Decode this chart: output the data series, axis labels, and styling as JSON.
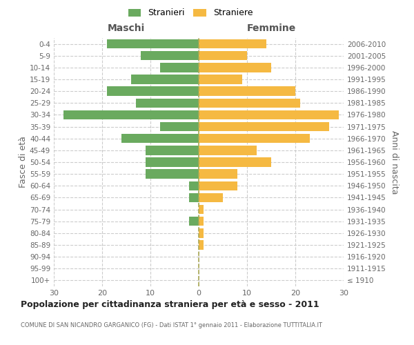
{
  "age_groups": [
    "100+",
    "95-99",
    "90-94",
    "85-89",
    "80-84",
    "75-79",
    "70-74",
    "65-69",
    "60-64",
    "55-59",
    "50-54",
    "45-49",
    "40-44",
    "35-39",
    "30-34",
    "25-29",
    "20-24",
    "15-19",
    "10-14",
    "5-9",
    "0-4"
  ],
  "birth_years": [
    "≤ 1910",
    "1911-1915",
    "1916-1920",
    "1921-1925",
    "1926-1930",
    "1931-1935",
    "1936-1940",
    "1941-1945",
    "1946-1950",
    "1951-1955",
    "1956-1960",
    "1961-1965",
    "1966-1970",
    "1971-1975",
    "1976-1980",
    "1981-1985",
    "1986-1990",
    "1991-1995",
    "1996-2000",
    "2001-2005",
    "2006-2010"
  ],
  "maschi": [
    0,
    0,
    0,
    0,
    0,
    2,
    0,
    2,
    2,
    11,
    11,
    11,
    16,
    8,
    28,
    13,
    19,
    14,
    8,
    12,
    19
  ],
  "femmine": [
    0,
    0,
    0,
    1,
    1,
    1,
    1,
    5,
    8,
    8,
    15,
    12,
    23,
    27,
    29,
    21,
    20,
    9,
    15,
    10,
    14
  ],
  "male_color": "#6aaa5f",
  "female_color": "#f5b942",
  "background_color": "#ffffff",
  "grid_color": "#cccccc",
  "title": "Popolazione per cittadinanza straniera per età e sesso - 2011",
  "subtitle": "COMUNE DI SAN NICANDRO GARGANICO (FG) - Dati ISTAT 1° gennaio 2011 - Elaborazione TUTTITALIA.IT",
  "xlabel_left": "Maschi",
  "xlabel_right": "Femmine",
  "ylabel_left": "Fasce di età",
  "ylabel_right": "Anni di nascita",
  "legend_male": "Stranieri",
  "legend_female": "Straniere",
  "xlim": 30
}
